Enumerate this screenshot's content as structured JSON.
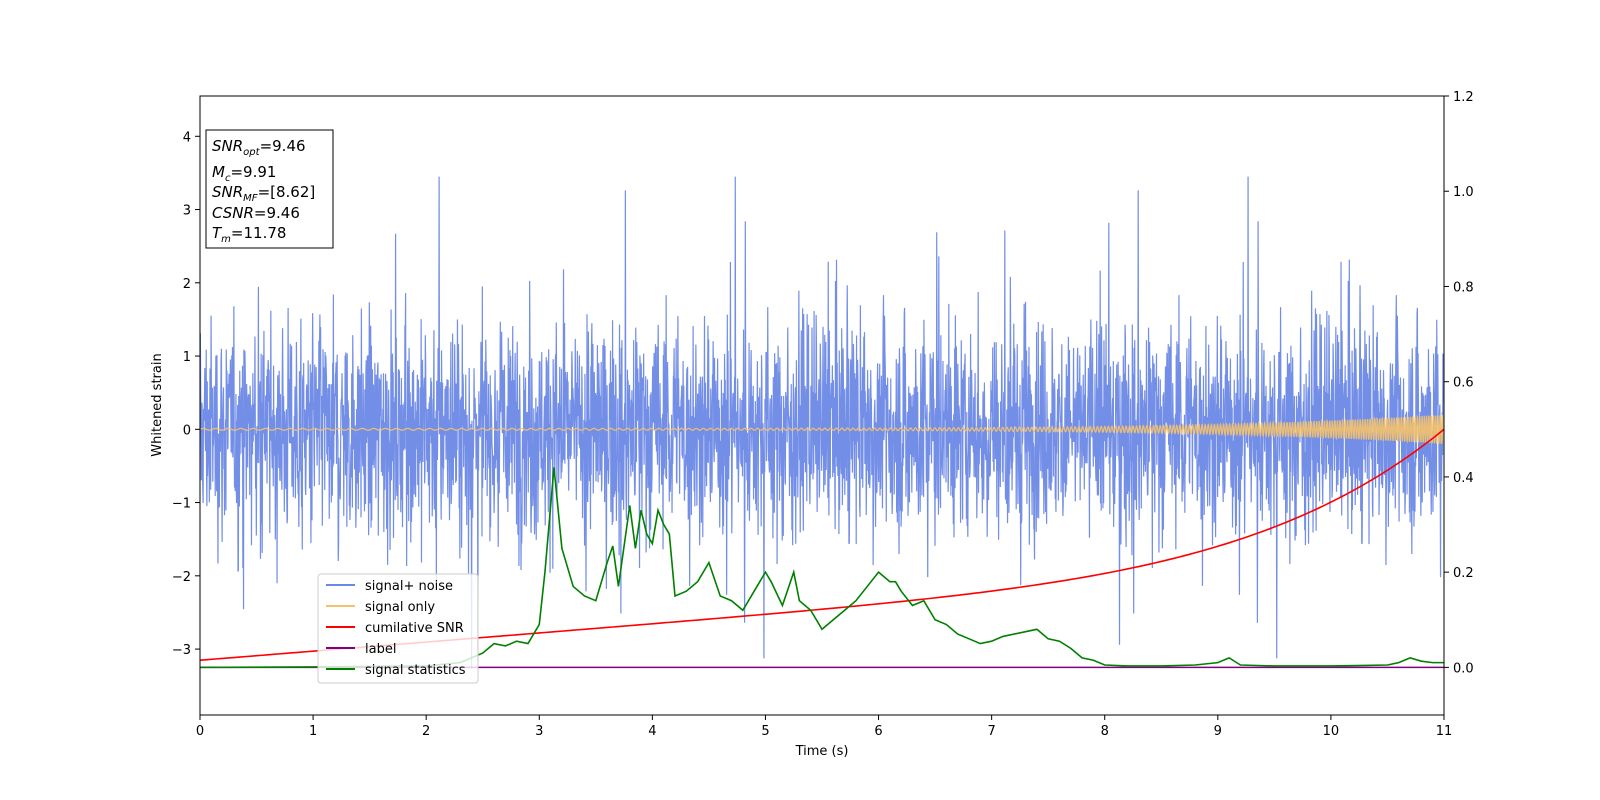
{
  "chart_data": {
    "type": "line",
    "xlabel": "Time (s)",
    "ylabel_left": "Whitened strain",
    "ylabel_right": "",
    "xlim": [
      0,
      11
    ],
    "ylim_left": [
      -3.9,
      4.55
    ],
    "ylim_right": [
      -0.1,
      1.2
    ],
    "x_ticks": [
      0,
      1,
      2,
      3,
      4,
      5,
      6,
      7,
      8,
      9,
      10,
      11
    ],
    "y_left_ticks": [
      -3,
      -2,
      -1,
      0,
      1,
      2,
      3,
      4
    ],
    "y_right_ticks": [
      0.0,
      0.2,
      0.4,
      0.6,
      0.8,
      1.0,
      1.2
    ],
    "y_left_tick_labels": [
      "−3",
      "−2",
      "−1",
      "0",
      "1",
      "2",
      "3",
      "4"
    ],
    "y_right_tick_labels": [
      "0.0",
      "0.2",
      "0.4",
      "0.6",
      "0.8",
      "1.0",
      "1.2"
    ],
    "grid": false,
    "legend_position": "lower-left",
    "series": [
      {
        "name": "signal+ noise",
        "axis": "left",
        "color": "#6b88e6",
        "style": "noise band, amplitude ≈ 1.5 with spikes to ≈ ±3.4"
      },
      {
        "name": "signal only",
        "axis": "left",
        "color": "#f5c26b",
        "style": "chirp, amplitude ≈ 0.01 rising to ≈ 0.2 at t=11"
      },
      {
        "name": "cumilative SNR",
        "axis": "right",
        "x": [
          0,
          1,
          2,
          3,
          4,
          5,
          6,
          7,
          8,
          9,
          10,
          10.5,
          11
        ],
        "values": [
          0.015,
          0.048,
          0.08,
          0.09,
          0.115,
          0.14,
          0.165,
          0.195,
          0.245,
          0.26,
          0.34,
          0.4,
          0.5
        ],
        "color": "#ff0000"
      },
      {
        "name": "label",
        "axis": "right",
        "x": [
          0,
          11
        ],
        "values": [
          0.0,
          0.0
        ],
        "color": "#800080"
      },
      {
        "name": "signal statistics",
        "axis": "right",
        "x": [
          0,
          1,
          2,
          2.3,
          2.5,
          2.6,
          2.7,
          2.8,
          2.9,
          3.0,
          3.05,
          3.13,
          3.2,
          3.3,
          3.4,
          3.5,
          3.6,
          3.65,
          3.7,
          3.8,
          3.85,
          3.9,
          3.95,
          4.0,
          4.05,
          4.1,
          4.15,
          4.2,
          4.3,
          4.4,
          4.5,
          4.6,
          4.7,
          4.8,
          4.9,
          5.0,
          5.05,
          5.15,
          5.25,
          5.3,
          5.4,
          5.5,
          5.6,
          5.7,
          5.8,
          5.9,
          6.0,
          6.1,
          6.15,
          6.2,
          6.3,
          6.4,
          6.5,
          6.6,
          6.7,
          6.8,
          6.9,
          7.0,
          7.1,
          7.3,
          7.4,
          7.5,
          7.6,
          7.7,
          7.8,
          7.9,
          8.0,
          8.2,
          8.5,
          8.8,
          9.0,
          9.1,
          9.2,
          9.5,
          10.0,
          10.3,
          10.5,
          10.6,
          10.7,
          10.8,
          10.9,
          11.0
        ],
        "values": [
          0.0,
          0.001,
          0.003,
          0.01,
          0.03,
          0.05,
          0.045,
          0.055,
          0.05,
          0.09,
          0.2,
          0.42,
          0.25,
          0.17,
          0.15,
          0.14,
          0.22,
          0.255,
          0.17,
          0.34,
          0.25,
          0.33,
          0.28,
          0.26,
          0.33,
          0.3,
          0.28,
          0.15,
          0.16,
          0.18,
          0.22,
          0.15,
          0.14,
          0.12,
          0.16,
          0.2,
          0.18,
          0.13,
          0.2,
          0.14,
          0.12,
          0.08,
          0.1,
          0.12,
          0.14,
          0.17,
          0.2,
          0.18,
          0.18,
          0.16,
          0.13,
          0.14,
          0.1,
          0.09,
          0.07,
          0.06,
          0.05,
          0.055,
          0.065,
          0.075,
          0.08,
          0.06,
          0.055,
          0.04,
          0.02,
          0.015,
          0.005,
          0.003,
          0.003,
          0.005,
          0.01,
          0.02,
          0.005,
          0.003,
          0.003,
          0.004,
          0.005,
          0.01,
          0.02,
          0.013,
          0.01,
          0.01
        ],
        "color": "#008000"
      }
    ]
  },
  "legend": {
    "items": [
      {
        "label": "signal+ noise",
        "color": "#6b88e6"
      },
      {
        "label": "signal only",
        "color": "#f5c26b"
      },
      {
        "label": "cumilative SNR",
        "color": "#ff0000"
      },
      {
        "label": "label",
        "color": "#800080"
      },
      {
        "label": "signal statistics",
        "color": "#008000"
      }
    ]
  },
  "info_box": {
    "snr_opt": {
      "base": "SNR",
      "sub": "opt",
      "value": "=9.46"
    },
    "mc": {
      "base": "M",
      "sub": "c",
      "value": "=9.91"
    },
    "snr_mf": {
      "base": "SNR",
      "sub": "MF",
      "value": "=[8.62]"
    },
    "csnr": {
      "base": "CSNR",
      "sub": "",
      "value": "=9.46"
    },
    "tm": {
      "base": "T",
      "sub": "m",
      "value": "=11.78"
    }
  }
}
